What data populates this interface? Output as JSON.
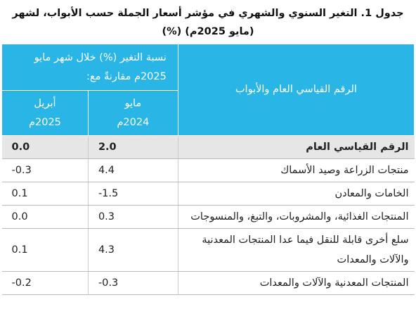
{
  "title": {
    "line1": "جدول 1. التغير السنوي والشهري في مؤشر أسعار الجملة حسب الأبواب، لشهر",
    "line2": "(مايو 2025م) (%)"
  },
  "table": {
    "header": {
      "label": "الرقم القياسي العام والأبواب",
      "group": "نسبة التغير (%) خلال شهر مايو 2025م مقارنةً مع:",
      "col1": "مايو 2024م",
      "col2": "أبريل 2025م"
    },
    "rows": [
      [
        "الرقم القياسي العام",
        "2.0",
        "0.0"
      ],
      [
        "منتجات الزراعة وصيد الأسماك",
        "4.4",
        "-0.3"
      ],
      [
        "الخامات والمعادن",
        "-1.5",
        "0.1"
      ],
      [
        "المنتجات الغذائية، والمشروبات، والتبغ، والمنسوجات",
        "0.3",
        "0.0"
      ],
      [
        "سلع أخرى قابلة للنقل فيما عدا المنتجات المعدنية والآلات والمعدات",
        "4.3",
        "0.1"
      ],
      [
        "المنتجات المعدنية والآلات والمعدات",
        "-0.3",
        "-0.2"
      ]
    ]
  }
}
